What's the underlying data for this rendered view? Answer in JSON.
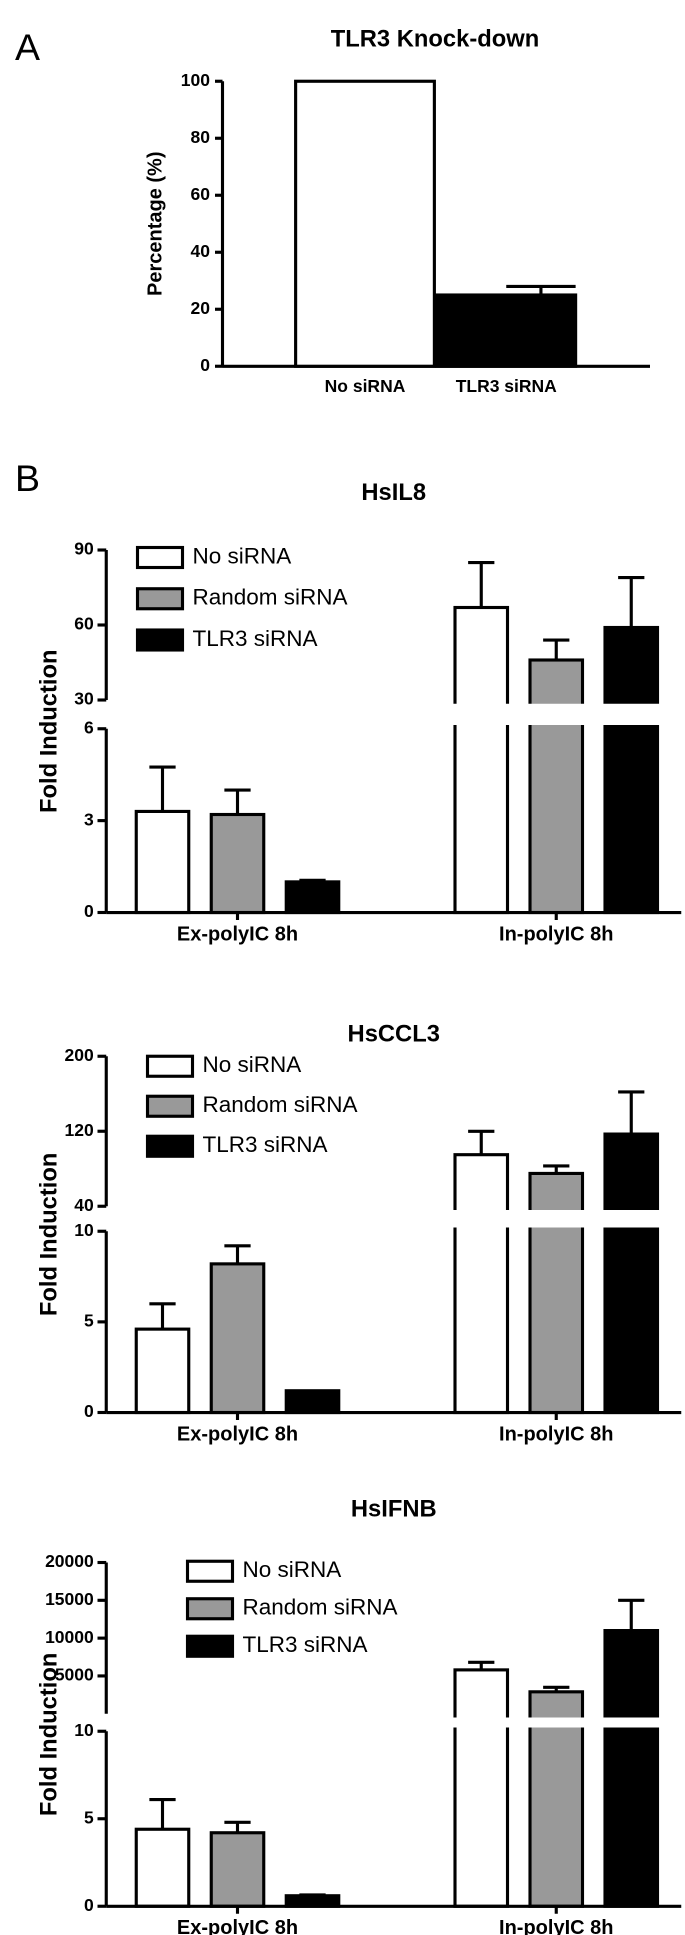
{
  "chart_data": [
    {
      "type": "bar",
      "panel_label": "A",
      "title": "TLR3 Knock-down",
      "y_label": "Percentage (%)",
      "categories": [
        "No siRNA",
        "TLR3 siRNA"
      ],
      "values": [
        100,
        25
      ],
      "errors": [
        0,
        3
      ],
      "colors": [
        "#ffffff",
        "#000000"
      ],
      "ylim": [
        0,
        100
      ],
      "yticks": [
        0,
        20,
        40,
        60,
        80,
        100
      ]
    },
    {
      "type": "broken_bar",
      "panel_label": "B",
      "title": "HsIL8",
      "y_label": "Fold Induction",
      "categories": [
        "Ex-polyIC 8h",
        "In-polyIC 8h"
      ],
      "series": [
        {
          "name": "No siRNA",
          "color": "#ffffff",
          "values": [
            3.3,
            67
          ],
          "errors": [
            1.45,
            18
          ]
        },
        {
          "name": "Random siRNA",
          "color": "#999999",
          "values": [
            3.2,
            46
          ],
          "errors": [
            0.8,
            8
          ]
        },
        {
          "name": "TLR3 siRNA",
          "color": "#000000",
          "values": [
            1.0,
            59
          ],
          "errors": [
            0.05,
            20
          ]
        }
      ],
      "ylim_lower": [
        0,
        6
      ],
      "yticks_lower": [
        0,
        3,
        6
      ],
      "ylim_upper": [
        30,
        90
      ],
      "yticks_upper": [
        30,
        60,
        90
      ]
    },
    {
      "type": "broken_bar",
      "title": "HsCCL3",
      "y_label": "Fold Induction",
      "categories": [
        "Ex-polyIC 8h",
        "In-polyIC 8h"
      ],
      "series": [
        {
          "name": "No siRNA",
          "color": "#ffffff",
          "values": [
            4.6,
            95
          ],
          "errors": [
            1.4,
            25
          ]
        },
        {
          "name": "Random siRNA",
          "color": "#999999",
          "values": [
            8.2,
            75
          ],
          "errors": [
            1.0,
            8
          ]
        },
        {
          "name": "TLR3 siRNA",
          "color": "#000000",
          "values": [
            1.2,
            117
          ],
          "errors": [
            0,
            45
          ]
        }
      ],
      "ylim_lower": [
        0,
        10
      ],
      "yticks_lower": [
        0,
        5,
        10
      ],
      "ylim_upper": [
        40,
        200
      ],
      "yticks_upper": [
        40,
        120,
        200
      ]
    },
    {
      "type": "broken_bar",
      "title": "HsIFNB",
      "y_label": "Fold Induction",
      "categories": [
        "Ex-polyIC 8h",
        "In-polyIC 8h"
      ],
      "series": [
        {
          "name": "No siRNA",
          "color": "#ffffff",
          "values": [
            4.4,
            5800
          ],
          "errors": [
            1.7,
            1000
          ]
        },
        {
          "name": "Random siRNA",
          "color": "#999999",
          "values": [
            4.2,
            2900
          ],
          "errors": [
            0.6,
            600
          ]
        },
        {
          "name": "TLR3 siRNA",
          "color": "#000000",
          "values": [
            0.6,
            11000
          ],
          "errors": [
            0.05,
            4000
          ]
        }
      ],
      "ylim_lower": [
        0,
        10
      ],
      "yticks_lower": [
        0,
        5,
        10
      ],
      "ylim_upper": [
        0,
        20000
      ],
      "yticks_upper": [
        5000,
        10000,
        15000,
        20000
      ]
    }
  ]
}
